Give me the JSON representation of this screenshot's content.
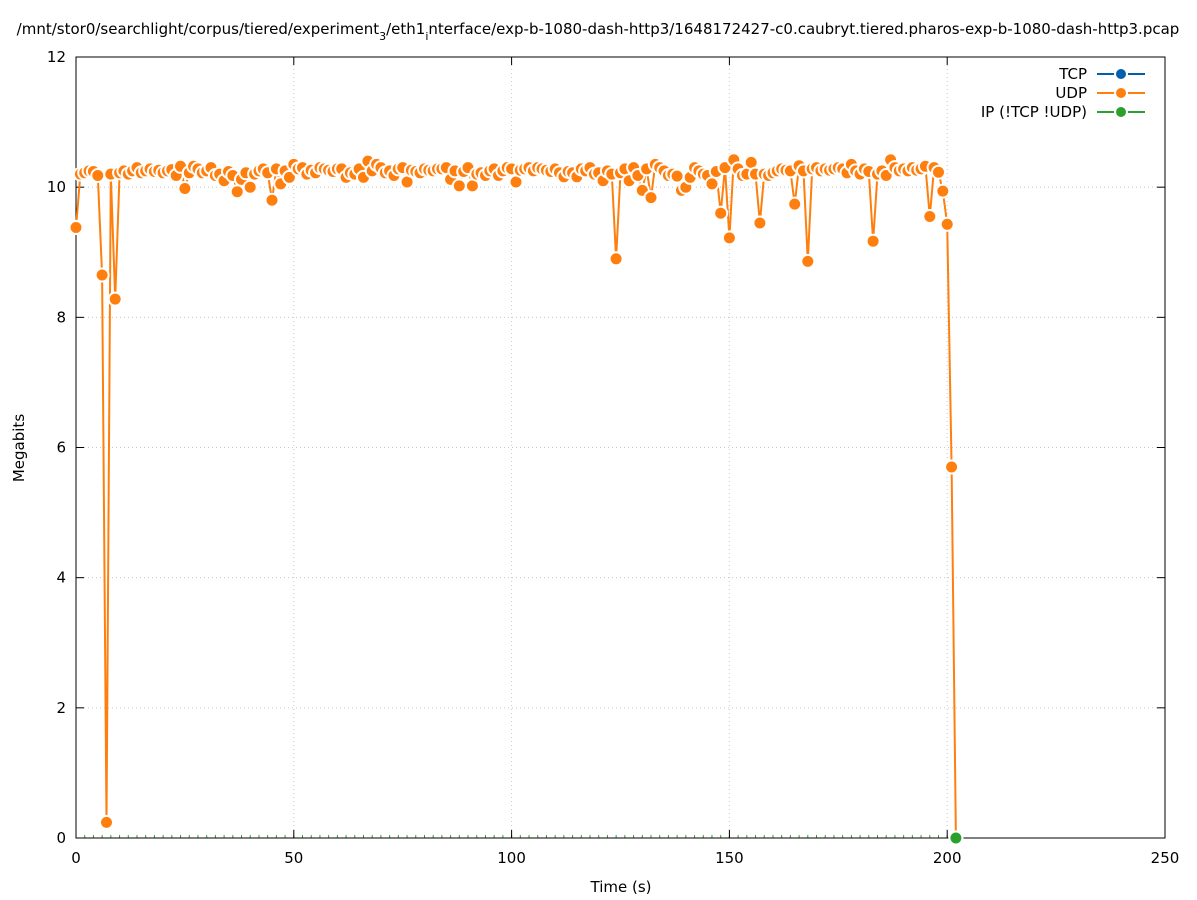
{
  "chart_data": {
    "type": "line",
    "title": "/mnt/stor0/searchlight/corpus/tiered/experiment_3/eth1_interface/exp-b-1080-dash-http3/1648172427-c0.caubryt.tiered.pharos-exp-b-1080-dash-http3.pcap",
    "title_parts": {
      "a": "/mnt/stor0/searchlight/corpus/tiered/experiment",
      "sub1": "3",
      "b": "/eth1",
      "sub2": "i",
      "c": "nterface/exp-b-1080-dash-http3/1648172427-c0.caubryt.tiered.pharos-exp-b-1080-dash-http3.pcap"
    },
    "xlabel": "Time (s)",
    "ylabel": "Megabits",
    "xlim": [
      0,
      250
    ],
    "ylim": [
      0,
      12
    ],
    "xticks": [
      "0",
      "50",
      "100",
      "150",
      "200",
      "250"
    ],
    "yticks": [
      "0",
      "2",
      "4",
      "6",
      "8",
      "10",
      "12"
    ],
    "grid": true,
    "legend_position": "top-right",
    "series": [
      {
        "name": "TCP",
        "color": "#0060ad",
        "x": [],
        "y": []
      },
      {
        "name": "UDP",
        "color": "#ff7f0e",
        "x": [
          0,
          1,
          2,
          3,
          4,
          5,
          6,
          7,
          8,
          9,
          10,
          11,
          12,
          13,
          14,
          15,
          16,
          17,
          18,
          19,
          20,
          21,
          22,
          23,
          24,
          25,
          26,
          27,
          28,
          29,
          30,
          31,
          32,
          33,
          34,
          35,
          36,
          37,
          38,
          39,
          40,
          41,
          42,
          43,
          44,
          45,
          46,
          47,
          48,
          49,
          50,
          51,
          52,
          53,
          54,
          55,
          56,
          57,
          58,
          59,
          60,
          61,
          62,
          63,
          64,
          65,
          66,
          67,
          68,
          69,
          70,
          71,
          72,
          73,
          74,
          75,
          76,
          77,
          78,
          79,
          80,
          81,
          82,
          83,
          84,
          85,
          86,
          87,
          88,
          89,
          90,
          91,
          92,
          93,
          94,
          95,
          96,
          97,
          98,
          99,
          100,
          101,
          102,
          103,
          104,
          105,
          106,
          107,
          108,
          109,
          110,
          111,
          112,
          113,
          114,
          115,
          116,
          117,
          118,
          119,
          120,
          121,
          122,
          123,
          124,
          125,
          126,
          127,
          128,
          129,
          130,
          131,
          132,
          133,
          134,
          135,
          136,
          137,
          138,
          139,
          140,
          141,
          142,
          143,
          144,
          145,
          146,
          147,
          148,
          149,
          150,
          151,
          152,
          153,
          154,
          155,
          156,
          157,
          158,
          159,
          160,
          161,
          162,
          163,
          164,
          165,
          166,
          167,
          168,
          169,
          170,
          171,
          172,
          173,
          174,
          175,
          176,
          177,
          178,
          179,
          180,
          181,
          182,
          183,
          184,
          185,
          186,
          187,
          188,
          189,
          190,
          191,
          192,
          193,
          194,
          195,
          196,
          197,
          198,
          199,
          200,
          201,
          202
        ],
        "y": [
          9.38,
          10.2,
          10.22,
          10.25,
          10.24,
          10.18,
          8.65,
          0.24,
          10.2,
          8.28,
          10.22,
          10.25,
          10.2,
          10.25,
          10.3,
          10.22,
          10.25,
          10.28,
          10.24,
          10.26,
          10.22,
          10.25,
          10.27,
          10.18,
          10.32,
          9.98,
          10.22,
          10.32,
          10.28,
          10.22,
          10.25,
          10.3,
          10.18,
          10.2,
          10.1,
          10.24,
          10.18,
          9.93,
          10.12,
          10.22,
          10.0,
          10.2,
          10.25,
          10.28,
          10.22,
          9.8,
          10.28,
          10.05,
          10.25,
          10.15,
          10.35,
          10.28,
          10.3,
          10.2,
          10.26,
          10.22,
          10.3,
          10.28,
          10.26,
          10.24,
          10.28,
          10.28,
          10.15,
          10.22,
          10.2,
          10.28,
          10.15,
          10.4,
          10.25,
          10.35,
          10.3,
          10.22,
          10.25,
          10.18,
          10.28,
          10.3,
          10.08,
          10.26,
          10.24,
          10.22,
          10.28,
          10.26,
          10.25,
          10.28,
          10.28,
          10.3,
          10.12,
          10.25,
          10.02,
          10.24,
          10.3,
          10.02,
          10.2,
          10.22,
          10.18,
          10.25,
          10.28,
          10.18,
          10.25,
          10.3,
          10.28,
          10.08,
          10.26,
          10.28,
          10.3,
          10.25,
          10.3,
          10.28,
          10.26,
          10.24,
          10.28,
          10.22,
          10.16,
          10.24,
          10.22,
          10.16,
          10.28,
          10.25,
          10.3,
          10.2,
          10.22,
          10.1,
          10.25,
          10.2,
          8.9,
          10.22,
          10.28,
          10.1,
          10.3,
          10.18,
          9.95,
          10.28,
          9.84,
          10.35,
          10.3,
          10.25,
          10.18,
          10.2,
          10.17,
          9.95,
          10.0,
          10.15,
          10.3,
          10.25,
          10.2,
          10.18,
          10.05,
          10.24,
          9.6,
          10.3,
          9.22,
          10.42,
          10.28,
          10.18,
          10.2,
          10.38,
          10.2,
          9.45,
          10.2,
          10.18,
          10.22,
          10.25,
          10.28,
          10.26,
          10.25,
          9.74,
          10.33,
          10.25,
          8.86,
          10.28,
          10.3,
          10.25,
          10.28,
          10.26,
          10.28,
          10.3,
          10.28,
          10.22,
          10.35,
          10.25,
          10.2,
          10.28,
          10.24,
          9.17,
          10.2,
          10.25,
          10.18,
          10.42,
          10.3,
          10.25,
          10.28,
          10.25,
          10.3,
          10.26,
          10.28,
          10.32,
          9.55,
          10.3,
          10.23,
          9.94,
          9.43,
          5.7,
          0.0
        ]
      },
      {
        "name": "IP (!TCP  !UDP)",
        "color": "#2ca02c",
        "x": [
          202
        ],
        "y": [
          0.0
        ]
      }
    ]
  }
}
